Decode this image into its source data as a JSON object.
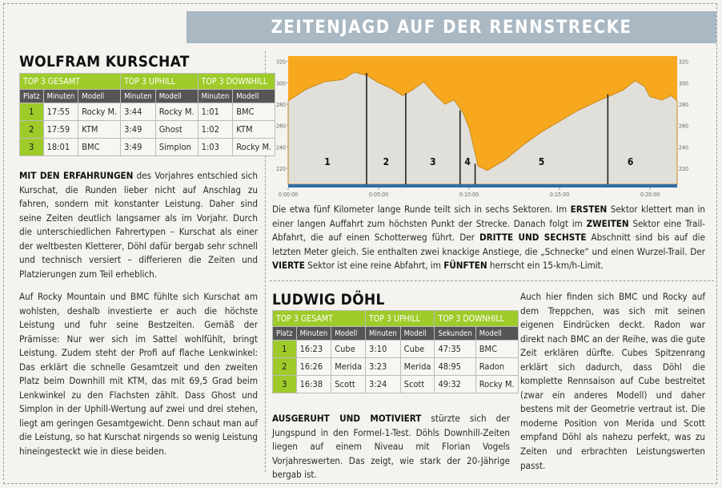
{
  "banner": {
    "title": "ZEITENJAGD AUF DER RENNSTRECKE"
  },
  "kurschat": {
    "name": "WOLFRAM KURSCHAT",
    "groups": [
      "TOP 3 GESAMT",
      "TOP 3 UPHILL",
      "TOP 3 DOWNHILL"
    ],
    "subheaders": [
      "Platz",
      "Minuten",
      "Modell",
      "Minuten",
      "Modell",
      "Minuten",
      "Modell"
    ],
    "rows": [
      [
        "1",
        "17:55",
        "Rocky M.",
        "3:44",
        "Rocky M.",
        "1:01",
        "BMC"
      ],
      [
        "2",
        "17:59",
        "KTM",
        "3:49",
        "Ghost",
        "1:02",
        "KTM"
      ],
      [
        "3",
        "18:01",
        "BMC",
        "3:49",
        "Simplon",
        "1:03",
        "Rocky M."
      ]
    ],
    "lead": "MIT DEN ERFAHRUNGEN",
    "text1": " des Vorjahres entschied sich Kurschat, die Runden lieber nicht auf Anschlag zu fahren, sondern mit konstanter Leistung. Daher sind seine Zeiten deutlich langsamer als im Vorjahr. Durch die unterschiedlichen Fahrertypen – Kurschat als einer der weltbesten Kletterer, Döhl dafür bergab sehr schnell und technisch versiert – differieren die Zeiten und Platzierungen zum Teil erheblich.",
    "text2": "Auf Rocky Mountain und BMC fühlte sich Kurschat am wohlsten, deshalb investierte er auch die höchste Leistung und fuhr seine Bestzeiten. Gemäß der Prämisse: Nur wer sich im Sattel wohlfühlt, bringt Leistung. Zudem steht der Profi auf flache Lenkwinkel: Das erklärt die schnelle Gesamtzeit und den zweiten Platz beim Downhill mit KTM, das mit 69,5 Grad beim Lenkwinkel zu den Flachsten zählt. Dass Ghost und Simplon in der Uphill-Wertung auf zwei und drei stehen, liegt am geringen Gesamtgewicht. Denn schaut man auf die Leistung, so hat Kurschat nirgends so wenig Leistung hineingesteckt wie in diese beiden."
  },
  "chart_data": {
    "type": "area",
    "y_ticks": [
      "320",
      "300",
      "280",
      "260",
      "240",
      "220"
    ],
    "ylim": [
      205,
      325
    ],
    "x_ticks": [
      "0:00:00",
      "0:05:00",
      "0:10:00",
      "0:15:00",
      "0:20:00"
    ],
    "sectors": [
      "1",
      "2",
      "3",
      "4",
      "5",
      "6"
    ],
    "sector_boundaries": [
      "0:04:20",
      "0:06:30",
      "0:09:30",
      "0:10:20",
      "0:17:40"
    ],
    "profile": [
      {
        "t": "0:00:00",
        "alt": 283
      },
      {
        "t": "0:01:00",
        "alt": 294
      },
      {
        "t": "0:02:00",
        "alt": 301
      },
      {
        "t": "0:03:00",
        "alt": 303
      },
      {
        "t": "0:03:40",
        "alt": 310
      },
      {
        "t": "0:04:20",
        "alt": 307
      },
      {
        "t": "0:05:00",
        "alt": 300
      },
      {
        "t": "0:05:40",
        "alt": 295
      },
      {
        "t": "0:06:20",
        "alt": 288
      },
      {
        "t": "0:06:50",
        "alt": 293
      },
      {
        "t": "0:07:30",
        "alt": 301
      },
      {
        "t": "0:08:10",
        "alt": 288
      },
      {
        "t": "0:08:40",
        "alt": 280
      },
      {
        "t": "0:09:10",
        "alt": 284
      },
      {
        "t": "0:09:40",
        "alt": 272
      },
      {
        "t": "0:10:00",
        "alt": 258
      },
      {
        "t": "0:10:30",
        "alt": 222
      },
      {
        "t": "0:11:00",
        "alt": 218
      },
      {
        "t": "0:12:00",
        "alt": 228
      },
      {
        "t": "0:13:00",
        "alt": 242
      },
      {
        "t": "0:14:00",
        "alt": 254
      },
      {
        "t": "0:15:00",
        "alt": 264
      },
      {
        "t": "0:16:00",
        "alt": 274
      },
      {
        "t": "0:17:00",
        "alt": 282
      },
      {
        "t": "0:17:40",
        "alt": 287
      },
      {
        "t": "0:18:30",
        "alt": 293
      },
      {
        "t": "0:19:10",
        "alt": 302
      },
      {
        "t": "0:19:40",
        "alt": 297
      },
      {
        "t": "0:20:00",
        "alt": 287
      },
      {
        "t": "0:20:40",
        "alt": 284
      },
      {
        "t": "0:21:10",
        "alt": 288
      },
      {
        "t": "0:21:30",
        "alt": 283
      }
    ],
    "colors": {
      "sky": "#f7a81e",
      "terrain": "#e0dfda",
      "bar": "#2f6ea8"
    }
  },
  "middle": {
    "text": "Die etwa fünf Kilometer lange Runde teilt sich in sechs Sektoren. Im |ERSTEN| Sektor klettert man in einer langen Auffahrt zum höchsten Punkt der Strecke. Danach folgt im |ZWEITEN| Sektor eine Trail-Abfahrt, die auf einen Schotterweg führt. Der |DRITTE UND SECHSTE| Abschnitt sind bis auf die letzten Meter gleich. Sie enthalten zwei knackige Anstiege, die „Schnecke“ und einen Wurzel-Trail. Der |VIERTE| Sektor ist eine reine Abfahrt, im |FÜNFTEN| herrscht ein 15-km/h-Limit."
  },
  "doehl": {
    "name": "LUDWIG DÖHL",
    "groups": [
      "TOP 3 GESAMT",
      "TOP 3 UPHILL",
      "TOP 3 DOWNHILL"
    ],
    "subheaders": [
      "Platz",
      "Minuten",
      "Modell",
      "Minuten",
      "Modell",
      "Sekunden",
      "Modell"
    ],
    "rows": [
      [
        "1",
        "16:23",
        "Cube",
        "3:10",
        "Cube",
        "47:35",
        "BMC"
      ],
      [
        "2",
        "16:26",
        "Merida",
        "3:23",
        "Merida",
        "48:95",
        "Radon"
      ],
      [
        "3",
        "16:38",
        "Scott",
        "3:24",
        "Scott",
        "49:32",
        "Rocky M."
      ]
    ],
    "lead": "AUSGERUHT UND MOTIVIERT",
    "text1": " stürzte sich der Jungspund in den Formel-1-Test. Döhls Downhill-Zeiten liegen auf einem Niveau mit Florian Vogels Vorjahreswerten. Das zeigt, wie stark der 20-Jährige bergab ist.",
    "text2": "Auch hier finden sich BMC und Rocky auf dem Treppchen, was sich mit seinen eigenen Eindrücken deckt. Radon war direkt nach BMC an der Reihe, was die gute Zeit erklären dürfte. Cubes Spitzenrang erklärt sich dadurch, dass Döhl die komplette Rennsaison auf Cube bestreitet (zwar ein anderes Modell) und daher bestens mit der Geometrie vertraut ist. Die moderne Position von Merida und Scott empfand Döhl als nahezu perfekt, was zu Zeiten und erbrachten Leistungswerten passt."
  }
}
